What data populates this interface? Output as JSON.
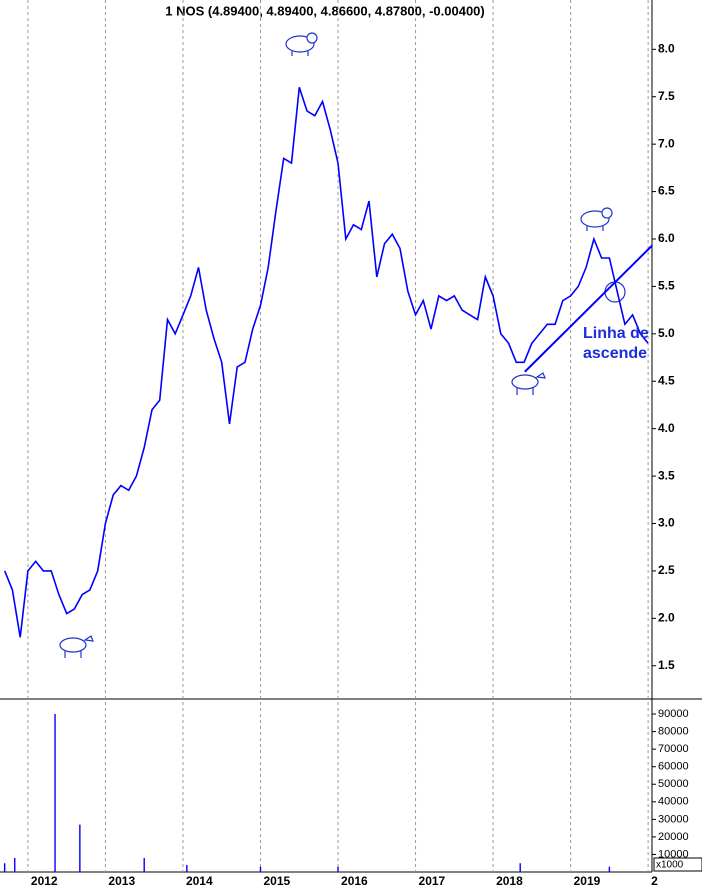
{
  "chart_data": [
    {
      "type": "line",
      "title": "1 NOS (4.89400, 4.89400, 4.86600, 4.87800, -0.00400)",
      "x": [
        2011.7,
        2011.8,
        2011.9,
        2012.0,
        2012.1,
        2012.2,
        2012.3,
        2012.4,
        2012.5,
        2012.6,
        2012.7,
        2012.8,
        2012.9,
        2013.0,
        2013.1,
        2013.2,
        2013.3,
        2013.4,
        2013.5,
        2013.6,
        2013.7,
        2013.8,
        2013.9,
        2014.0,
        2014.1,
        2014.2,
        2014.3,
        2014.4,
        2014.5,
        2014.6,
        2014.7,
        2014.8,
        2014.9,
        2015.0,
        2015.1,
        2015.2,
        2015.3,
        2015.4,
        2015.5,
        2015.6,
        2015.7,
        2015.8,
        2015.9,
        2016.0,
        2016.1,
        2016.2,
        2016.3,
        2016.4,
        2016.5,
        2016.6,
        2016.7,
        2016.8,
        2016.9,
        2017.0,
        2017.1,
        2017.2,
        2017.3,
        2017.4,
        2017.5,
        2017.6,
        2017.7,
        2017.8,
        2017.9,
        2018.0,
        2018.1,
        2018.2,
        2018.3,
        2018.4,
        2018.5,
        2018.6,
        2018.7,
        2018.8,
        2018.9,
        2019.0,
        2019.1,
        2019.2,
        2019.3,
        2019.4,
        2019.5,
        2019.6,
        2019.7,
        2019.8,
        2019.9,
        2020.0
      ],
      "values": [
        2.5,
        2.3,
        1.8,
        2.5,
        2.6,
        2.5,
        2.5,
        2.25,
        2.05,
        2.1,
        2.25,
        2.3,
        2.5,
        3.0,
        3.3,
        3.4,
        3.35,
        3.5,
        3.8,
        4.2,
        4.3,
        5.15,
        5.0,
        5.2,
        5.4,
        5.7,
        5.25,
        4.95,
        4.7,
        4.05,
        4.65,
        4.7,
        5.05,
        5.3,
        5.7,
        6.3,
        6.85,
        6.8,
        7.6,
        7.35,
        7.3,
        7.45,
        7.15,
        6.8,
        6.0,
        6.15,
        6.1,
        6.4,
        5.6,
        5.95,
        6.05,
        5.9,
        5.45,
        5.2,
        5.35,
        5.05,
        5.4,
        5.35,
        5.4,
        5.25,
        5.2,
        5.15,
        5.6,
        5.4,
        5.0,
        4.9,
        4.7,
        4.7,
        4.9,
        5.0,
        5.1,
        5.1,
        5.35,
        5.4,
        5.5,
        5.7,
        6.0,
        5.8,
        5.8,
        5.45,
        5.1,
        5.2,
        5.0,
        4.9
      ],
      "color": "#0000ff",
      "xlim": [
        2011.64,
        2020.05
      ],
      "ylim": [
        1.16,
        8.52
      ],
      "yticks": [
        1.5,
        {
          "value": 2,
          "label": "2.0"
        },
        2.5,
        {
          "value": 3,
          "label": "3.0"
        },
        3.5,
        {
          "value": 4,
          "label": "4.0"
        },
        4.5,
        {
          "value": 5,
          "label": "5.0"
        },
        5.5,
        {
          "value": 6,
          "label": "6.0"
        },
        6.5,
        {
          "value": 7,
          "label": "7.0"
        },
        7.5,
        {
          "value": 8,
          "label": "8.0"
        }
      ],
      "trendline": {
        "x": [
          2018.41,
          2020.05
        ],
        "values": [
          4.6,
          5.93
        ],
        "color": "#0000ff"
      },
      "annotations": [
        "Linha de",
        "ascende"
      ]
    },
    {
      "type": "bar",
      "x": [
        2011.7,
        2011.83,
        2012.35,
        2012.67,
        2013.5,
        2014.05,
        2015.0,
        2016.0,
        2018.35,
        2019.5
      ],
      "values": [
        5000,
        8000,
        90000,
        27000,
        8000,
        4000,
        3000,
        3000,
        5000,
        3000
      ],
      "color": "#0000ff",
      "xlim": [
        2011.64,
        2020.05
      ],
      "ylim": [
        0,
        98000
      ],
      "yticks": [
        10000,
        20000,
        30000,
        40000,
        50000,
        60000,
        70000,
        80000,
        90000
      ],
      "unit_label": "x1000",
      "xticks": [
        2012,
        2013,
        2014,
        2015,
        2016,
        2017,
        2018,
        2019,
        {
          "value": 2020,
          "label": "2"
        }
      ]
    }
  ]
}
